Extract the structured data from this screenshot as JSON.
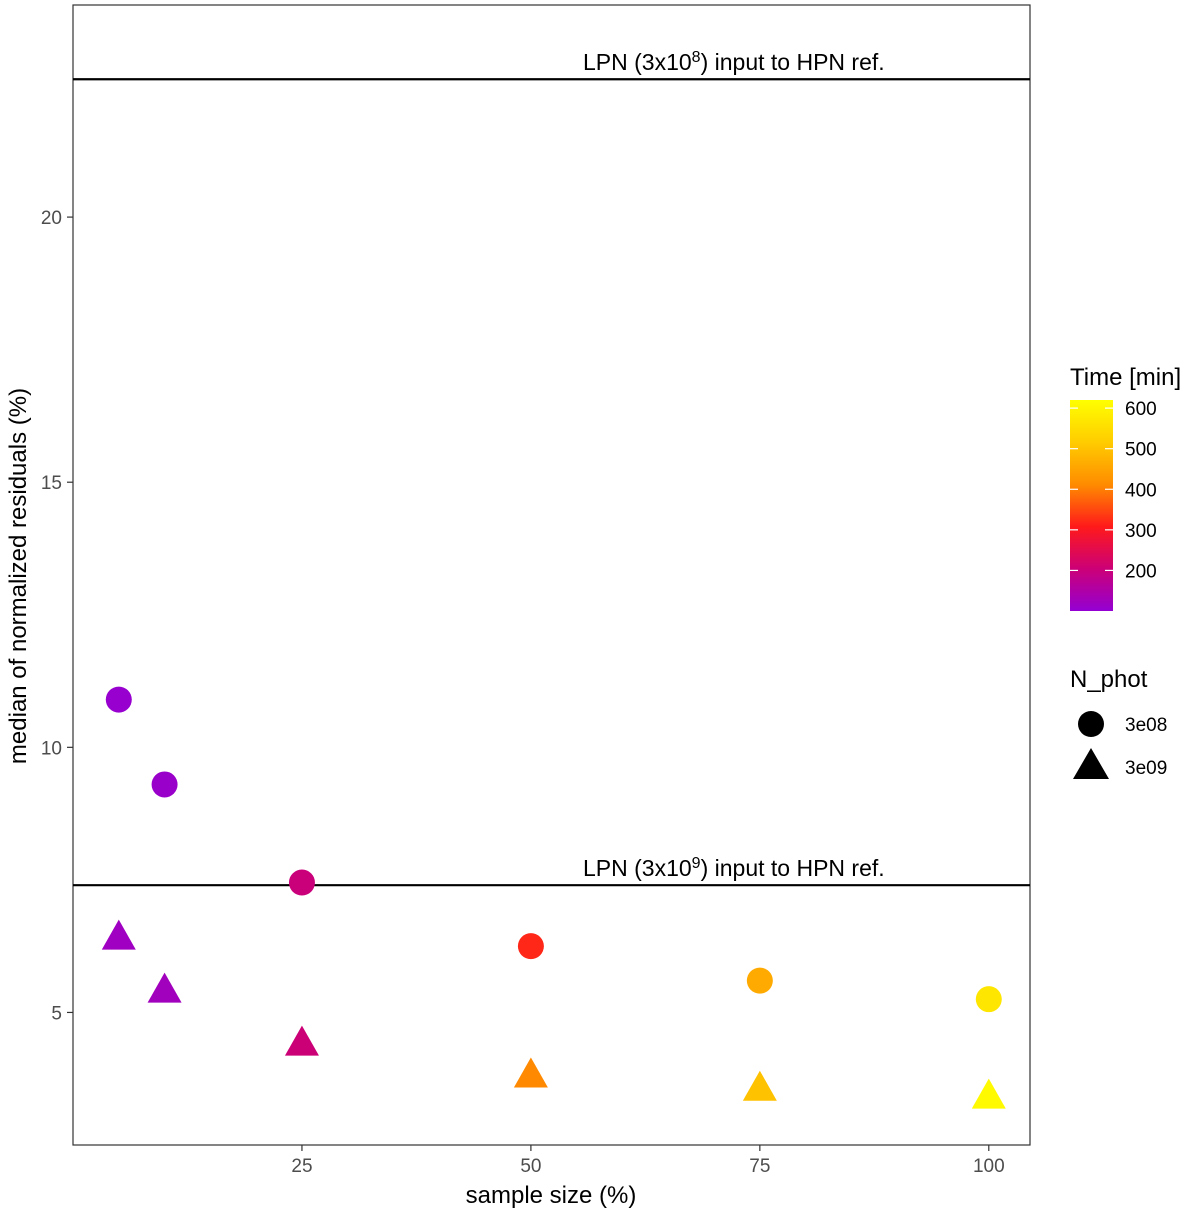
{
  "chart_data": {
    "type": "scatter",
    "xlabel": "sample size (%)",
    "ylabel": "median of normalized residuals (%)",
    "xlim": [
      0,
      104.5
    ],
    "ylim": [
      2.5,
      24
    ],
    "x_ticks": [
      25,
      50,
      75,
      100
    ],
    "y_ticks": [
      5,
      10,
      15,
      20
    ],
    "grid": false,
    "points": [
      {
        "x": 5,
        "y": 10.9,
        "time": 105,
        "n_phot": "3e08"
      },
      {
        "x": 10,
        "y": 9.3,
        "time": 110,
        "n_phot": "3e08"
      },
      {
        "x": 25,
        "y": 7.45,
        "time": 200,
        "n_phot": "3e08"
      },
      {
        "x": 50,
        "y": 6.25,
        "time": 320,
        "n_phot": "3e08"
      },
      {
        "x": 75,
        "y": 5.6,
        "time": 460,
        "n_phot": "3e08"
      },
      {
        "x": 100,
        "y": 5.25,
        "time": 570,
        "n_phot": "3e08"
      },
      {
        "x": 5,
        "y": 6.4,
        "time": 120,
        "n_phot": "3e09"
      },
      {
        "x": 10,
        "y": 5.4,
        "time": 125,
        "n_phot": "3e09"
      },
      {
        "x": 25,
        "y": 4.4,
        "time": 205,
        "n_phot": "3e09"
      },
      {
        "x": 50,
        "y": 3.8,
        "time": 410,
        "n_phot": "3e09"
      },
      {
        "x": 75,
        "y": 3.55,
        "time": 500,
        "n_phot": "3e09"
      },
      {
        "x": 100,
        "y": 3.4,
        "time": 610,
        "n_phot": "3e09"
      }
    ],
    "reference_lines": [
      {
        "y": 22.6,
        "label_prefix": "LPN (3x10",
        "label_exp": "8",
        "label_suffix": ") input to HPN ref."
      },
      {
        "y": 7.4,
        "label_prefix": "LPN (3x10",
        "label_exp": "9",
        "label_suffix": ") input to HPN ref."
      }
    ],
    "color_legend": {
      "title": "Time [min]",
      "min": 100,
      "max": 620,
      "ticks": [
        200,
        300,
        400,
        500,
        600
      ],
      "colors": [
        "#9400d3",
        "#cc0077",
        "#ff1a1a",
        "#ff8c00",
        "#ffcc00",
        "#ffff00"
      ]
    },
    "shape_legend": {
      "title": "N_phot",
      "items": [
        {
          "shape": "circle",
          "label": "3e08"
        },
        {
          "shape": "triangle",
          "label": "3e09"
        }
      ]
    }
  }
}
